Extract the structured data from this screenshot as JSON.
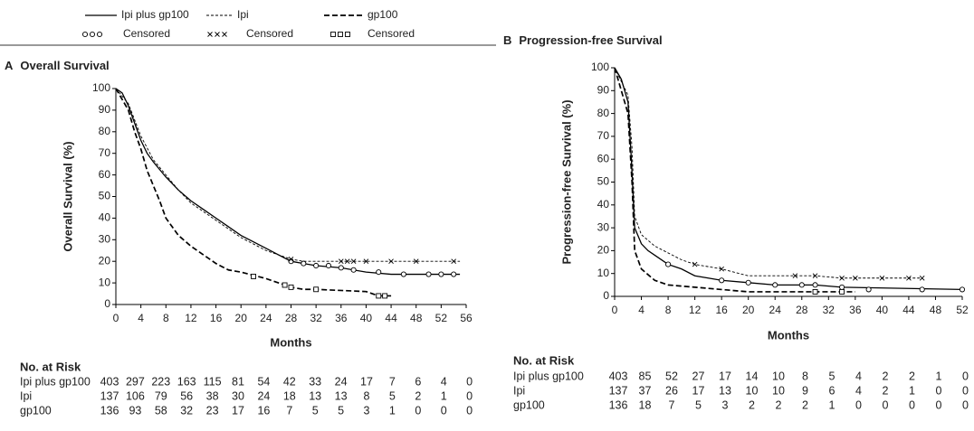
{
  "chart_data": [
    {
      "type": "line",
      "panel": "A",
      "title": "Overall Survival",
      "x_label": "Months",
      "y_label": "Overall Survival (%)",
      "xlim": [
        0,
        56
      ],
      "xticks": [
        0,
        4,
        8,
        12,
        16,
        20,
        24,
        28,
        32,
        36,
        40,
        44,
        48,
        52,
        56
      ],
      "ylim": [
        0,
        100
      ],
      "yticks": [
        0,
        10,
        20,
        30,
        40,
        50,
        60,
        70,
        80,
        90,
        100
      ],
      "series": [
        {
          "name": "Ipi plus gp100",
          "censored_label": "Censored",
          "color": "#000000",
          "dash": "solid",
          "marker": "circle",
          "x": [
            0,
            1,
            2,
            3,
            4,
            5,
            6,
            8,
            10,
            12,
            14,
            16,
            18,
            20,
            22,
            24,
            26,
            28,
            30,
            32,
            36,
            40,
            44,
            55
          ],
          "values": [
            100,
            98,
            92,
            84,
            76,
            70,
            66,
            59,
            53,
            48,
            44,
            40,
            36,
            32,
            29,
            26,
            23,
            20,
            19,
            18,
            17,
            15,
            14,
            14
          ],
          "censored_x": [
            28,
            30,
            32,
            34,
            36,
            38,
            42,
            46,
            50,
            52,
            54
          ],
          "censored_values": [
            20,
            19,
            18,
            18,
            17,
            16,
            15,
            14,
            14,
            14,
            14
          ]
        },
        {
          "name": "Ipi",
          "color": "#000000",
          "censored_label": "Censored",
          "dash": "thin-dash",
          "marker": "x",
          "x": [
            0,
            2,
            4,
            6,
            8,
            10,
            12,
            14,
            16,
            18,
            20,
            22,
            24,
            26,
            28,
            30,
            55
          ],
          "values": [
            100,
            93,
            78,
            67,
            60,
            53,
            47,
            43,
            39,
            35,
            31,
            28,
            25,
            23,
            21,
            20,
            20
          ],
          "censored_x": [
            28,
            36,
            37,
            38,
            40,
            44,
            48,
            54
          ],
          "censored_values": [
            21,
            20,
            20,
            20,
            20,
            20,
            20,
            20
          ]
        },
        {
          "name": "gp100",
          "color": "#000000",
          "censored_label": "Censored",
          "dash": "thick-dash",
          "marker": "square",
          "x": [
            0,
            2,
            3,
            4,
            5,
            6,
            7,
            8,
            10,
            12,
            14,
            16,
            18,
            20,
            24,
            26,
            28,
            30,
            32,
            40,
            42,
            44
          ],
          "values": [
            100,
            90,
            80,
            72,
            62,
            55,
            48,
            40,
            32,
            27,
            23,
            19,
            16,
            15,
            12,
            10,
            8,
            7,
            7,
            6,
            4,
            4
          ],
          "censored_x": [
            22,
            27,
            28,
            32,
            42,
            43
          ],
          "censored_values": [
            13,
            9,
            8,
            7,
            4,
            4
          ]
        }
      ],
      "risk_table": {
        "title": "No. at Risk",
        "rows": [
          {
            "label": "Ipi plus gp100",
            "values": [
              403,
              297,
              223,
              163,
              115,
              81,
              54,
              42,
              33,
              24,
              17,
              7,
              6,
              4,
              0
            ]
          },
          {
            "label": "Ipi",
            "values": [
              137,
              106,
              79,
              56,
              38,
              30,
              24,
              18,
              13,
              13,
              8,
              5,
              2,
              1,
              0
            ]
          },
          {
            "label": "gp100",
            "values": [
              136,
              93,
              58,
              32,
              23,
              17,
              16,
              7,
              5,
              5,
              3,
              1,
              0,
              0,
              0
            ]
          }
        ]
      }
    },
    {
      "type": "line",
      "panel": "B",
      "title": "Progression-free Survival",
      "x_label": "Months",
      "y_label": "Progression-free Survival (%)",
      "xlim": [
        0,
        52
      ],
      "xticks": [
        0,
        4,
        8,
        12,
        16,
        20,
        24,
        28,
        32,
        36,
        40,
        44,
        48,
        52
      ],
      "ylim": [
        0,
        100
      ],
      "yticks": [
        0,
        10,
        20,
        30,
        40,
        50,
        60,
        70,
        80,
        90,
        100
      ],
      "series": [
        {
          "name": "Ipi plus gp100",
          "color": "#000000",
          "dash": "solid",
          "marker": "circle",
          "x": [
            0,
            1,
            2,
            2.5,
            3,
            4,
            5,
            6,
            8,
            10,
            12,
            14,
            16,
            20,
            24,
            30,
            34,
            52
          ],
          "values": [
            100,
            95,
            85,
            60,
            30,
            23,
            20,
            18,
            14,
            12,
            9,
            8,
            7,
            6,
            5,
            5,
            4,
            3
          ],
          "censored_x": [
            8,
            16,
            20,
            24,
            28,
            30,
            34,
            38,
            46,
            52
          ],
          "censored_values": [
            14,
            7,
            6,
            5,
            5,
            5,
            4,
            3,
            3,
            3
          ]
        },
        {
          "name": "Ipi",
          "color": "#000000",
          "dash": "thin-dash",
          "marker": "x",
          "x": [
            0,
            2,
            2.6,
            3,
            4,
            6,
            8,
            10,
            12,
            16,
            20,
            30,
            34,
            46
          ],
          "values": [
            100,
            88,
            65,
            35,
            27,
            22,
            19,
            16,
            14,
            12,
            9,
            9,
            8,
            8
          ],
          "censored_x": [
            12,
            16,
            27,
            30,
            34,
            36,
            40,
            44,
            46
          ],
          "censored_values": [
            14,
            12,
            9,
            9,
            8,
            8,
            8,
            8,
            8
          ]
        },
        {
          "name": "gp100",
          "color": "#000000",
          "dash": "thick-dash",
          "marker": "square",
          "x": [
            0,
            2,
            2.6,
            3,
            4,
            6,
            8,
            12,
            16,
            20,
            34,
            36
          ],
          "values": [
            100,
            80,
            50,
            20,
            12,
            7,
            5,
            4,
            3,
            2,
            2,
            2
          ],
          "censored_x": [
            30,
            34
          ],
          "censored_values": [
            2,
            2
          ]
        }
      ],
      "risk_table": {
        "title": "No. at Risk",
        "rows": [
          {
            "label": "Ipi plus gp100",
            "values": [
              403,
              85,
              52,
              27,
              17,
              14,
              10,
              8,
              5,
              4,
              2,
              2,
              1,
              0
            ]
          },
          {
            "label": "Ipi",
            "values": [
              137,
              37,
              26,
              17,
              13,
              10,
              10,
              9,
              6,
              4,
              2,
              1,
              0,
              0
            ]
          },
          {
            "label": "gp100",
            "values": [
              136,
              18,
              7,
              5,
              3,
              2,
              2,
              2,
              1,
              0,
              0,
              0,
              0,
              0
            ]
          }
        ]
      }
    }
  ]
}
